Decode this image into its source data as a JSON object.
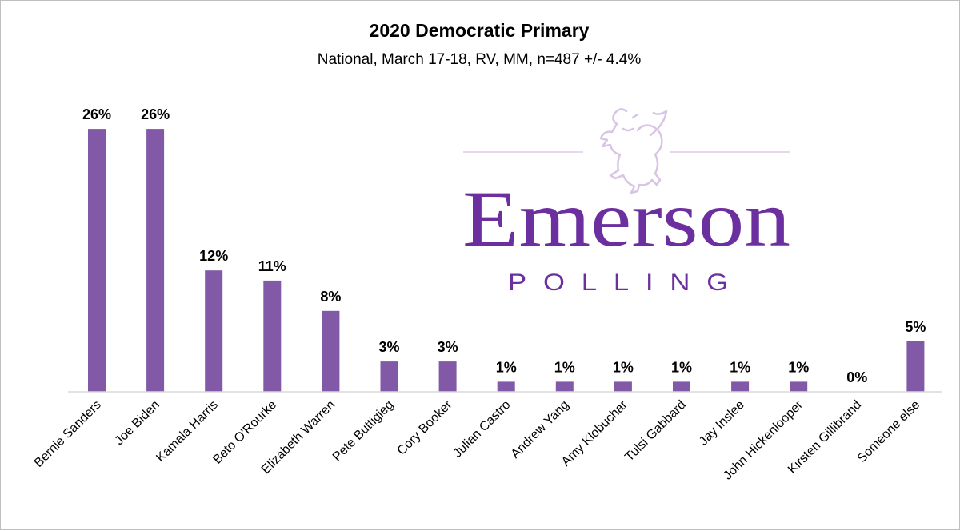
{
  "chart_data": {
    "type": "bar",
    "title": "2020 Democratic Primary",
    "subtitle": "National, March 17-18, RV, MM, n=487 +/- 4.4%",
    "xlabel": "",
    "ylabel": "",
    "ylim": [
      0,
      28
    ],
    "grid": false,
    "legend": "none",
    "bar_color": "#8159a7",
    "categories": [
      "Bernie Sanders",
      "Joe Biden",
      "Kamala Harris",
      "Beto O'Rourke",
      "Elizabeth Warren",
      "Pete Buttigieg",
      "Cory Booker",
      "Julian Castro",
      "Andrew Yang",
      "Amy Klobuchar",
      "Tulsi Gabbard",
      "Jay Inslee",
      "John Hickenlooper",
      "Kirsten Gillibrand",
      "Someone else"
    ],
    "values": [
      26,
      26,
      12,
      11,
      8,
      3,
      3,
      1,
      1,
      1,
      1,
      1,
      1,
      0,
      5
    ],
    "data_labels": [
      "26%",
      "26%",
      "12%",
      "11%",
      "8%",
      "3%",
      "3%",
      "1%",
      "1%",
      "1%",
      "1%",
      "1%",
      "1%",
      "0%",
      "5%"
    ]
  },
  "watermark": {
    "word": "Emerson",
    "sub": "POLLING",
    "color": "#6b2fa0",
    "line_color": "#e6d9ee",
    "icon": "lion-rampant-icon"
  }
}
